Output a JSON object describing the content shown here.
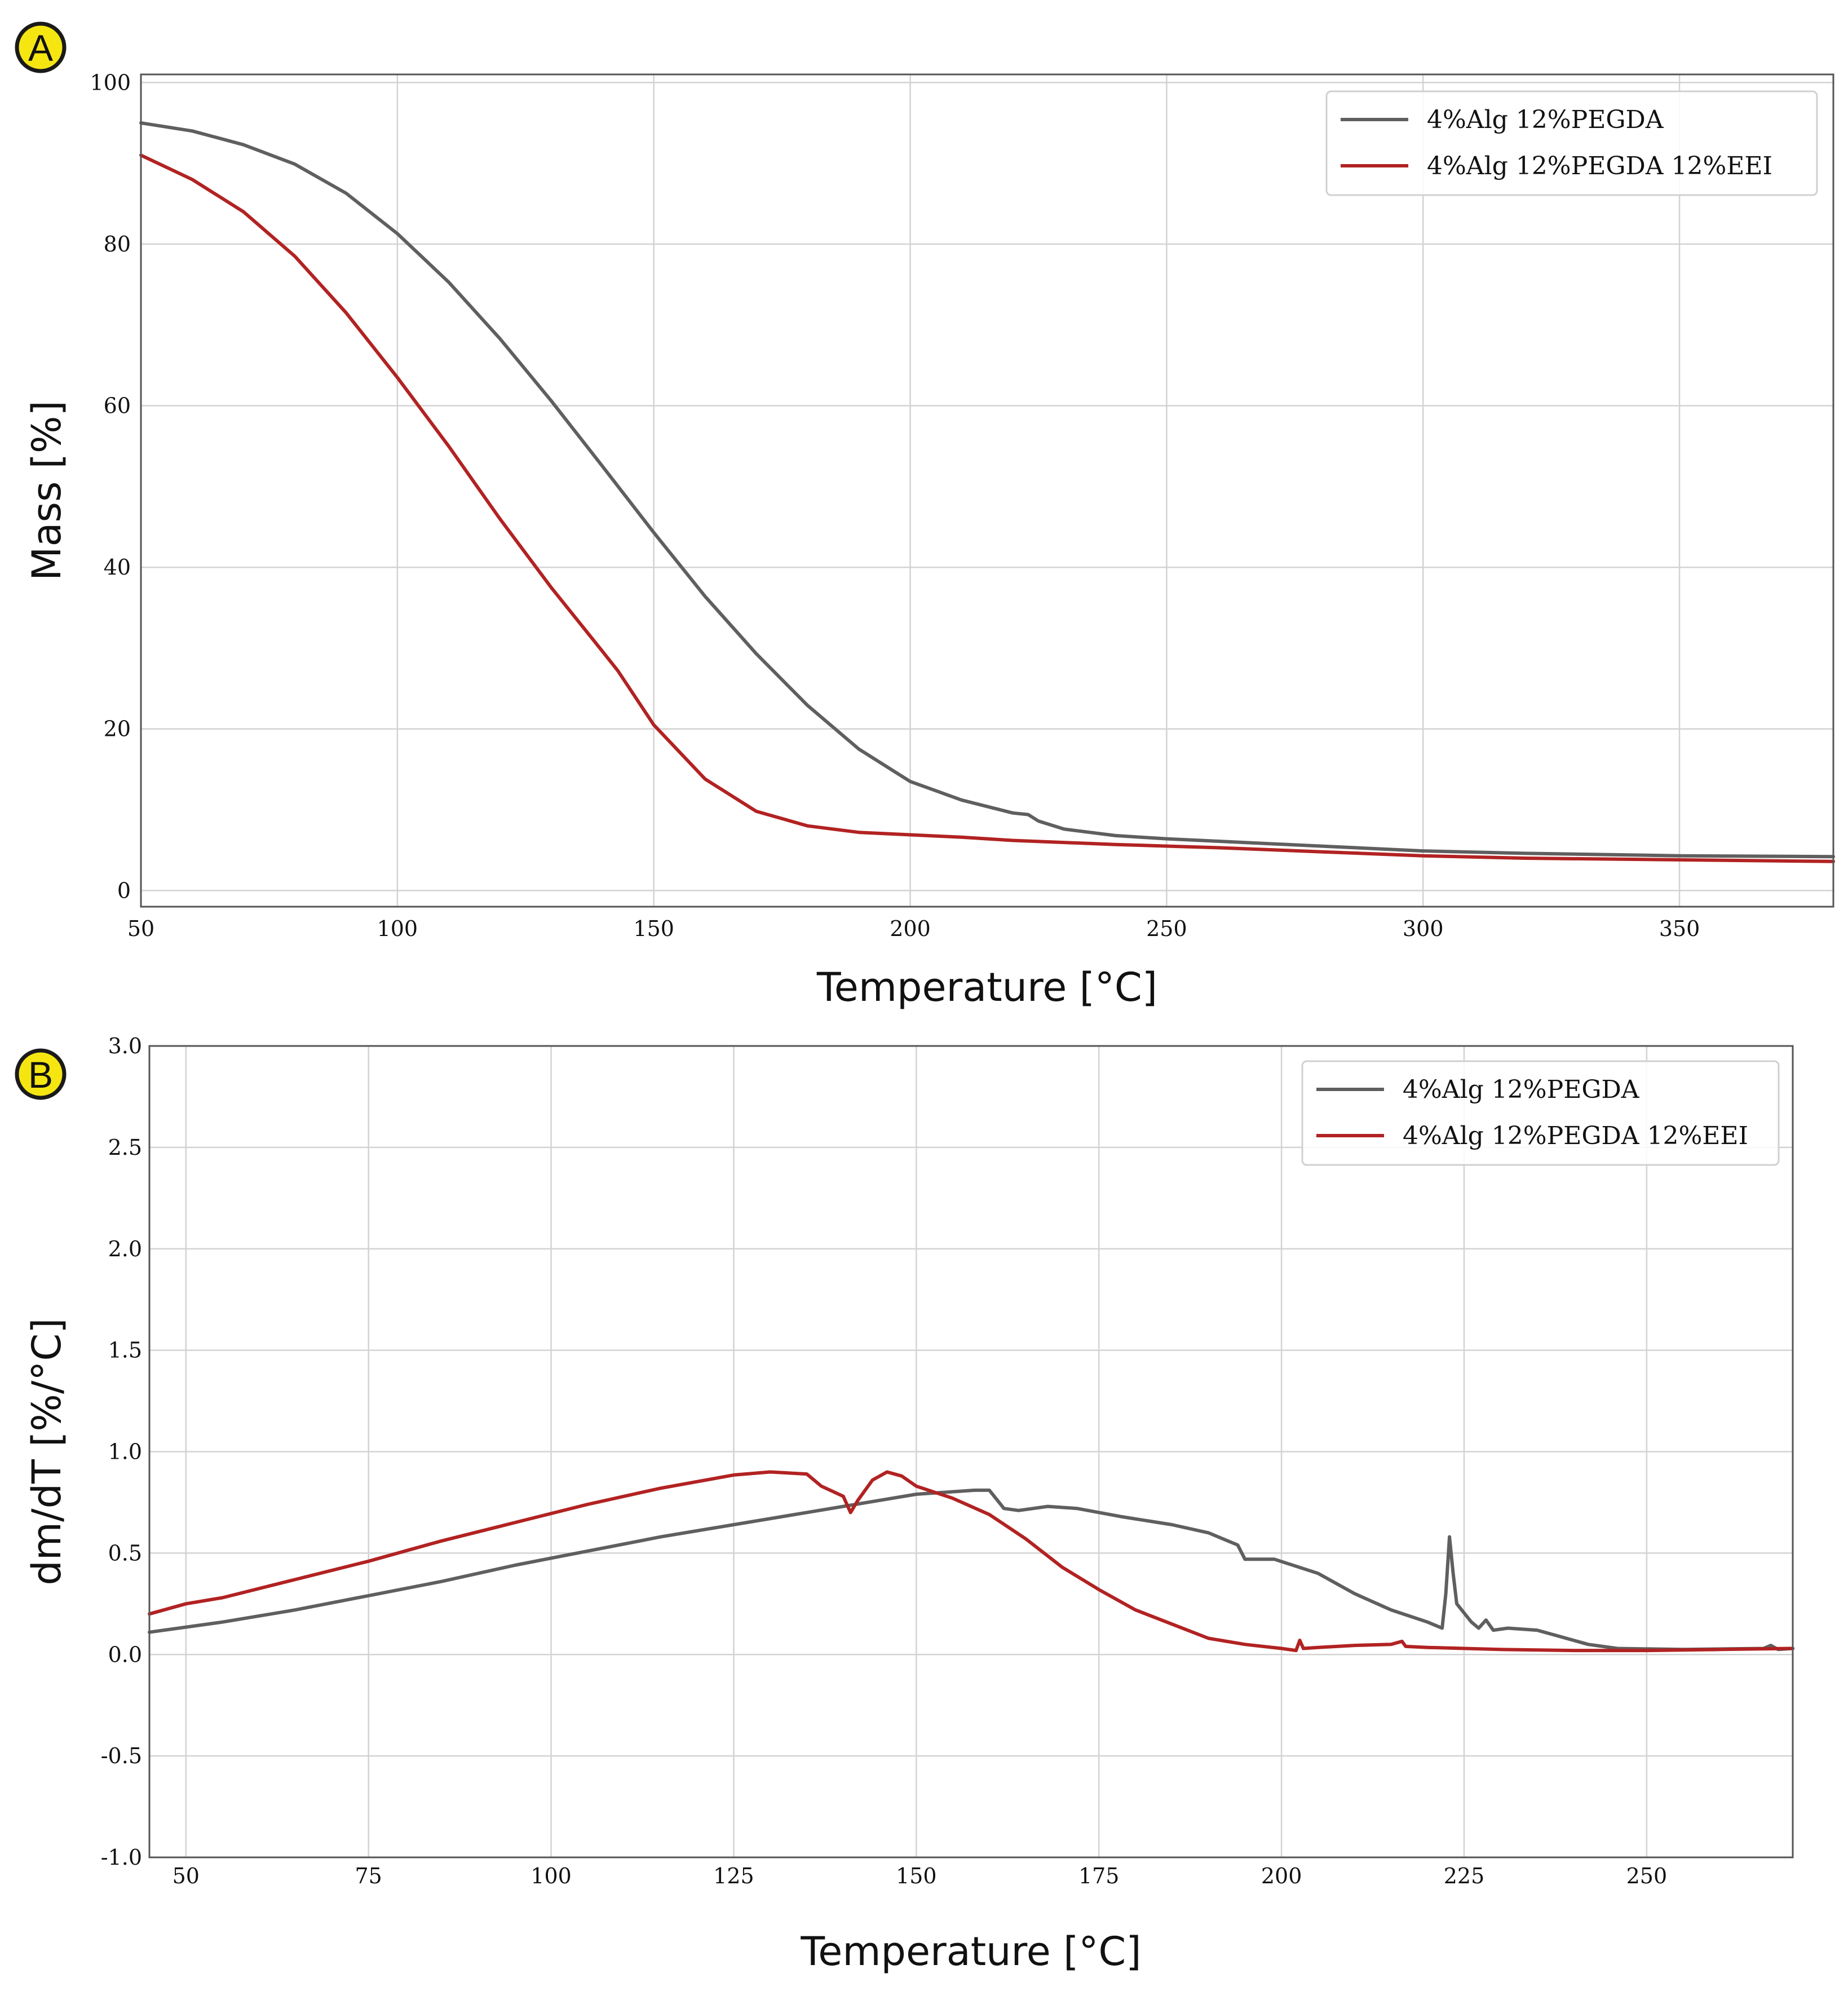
{
  "chart_data": [
    {
      "panel_label": "A",
      "type": "line",
      "xlabel": "Temperature [°C]",
      "ylabel": "Mass [%]",
      "xlim": [
        50,
        380
      ],
      "ylim": [
        -2,
        101
      ],
      "xticks": [
        50,
        100,
        150,
        200,
        250,
        300,
        350
      ],
      "yticks": [
        0,
        20,
        40,
        60,
        80,
        100
      ],
      "grid": true,
      "legend_position": "top-right",
      "series": [
        {
          "name": "4%Alg 12%PEGDA",
          "color": "#5f5f5f",
          "points": [
            [
              50,
              95
            ],
            [
              60,
              94
            ],
            [
              70,
              92.3
            ],
            [
              80,
              89.9
            ],
            [
              90,
              86.3
            ],
            [
              100,
              81.3
            ],
            [
              110,
              75.3
            ],
            [
              120,
              68.3
            ],
            [
              130,
              60.6
            ],
            [
              140,
              52.5
            ],
            [
              150,
              44.3
            ],
            [
              160,
              36.4
            ],
            [
              170,
              29.3
            ],
            [
              180,
              22.9
            ],
            [
              190,
              17.5
            ],
            [
              200,
              13.5
            ],
            [
              210,
              11.2
            ],
            [
              220,
              9.6
            ],
            [
              223,
              9.4
            ],
            [
              225,
              8.6
            ],
            [
              230,
              7.6
            ],
            [
              240,
              6.8
            ],
            [
              250,
              6.4
            ],
            [
              260,
              6.1
            ],
            [
              270,
              5.8
            ],
            [
              280,
              5.5
            ],
            [
              300,
              4.9
            ],
            [
              320,
              4.6
            ],
            [
              350,
              4.3
            ],
            [
              380,
              4.2
            ]
          ]
        },
        {
          "name": "4%Alg 12%PEGDA 12%EEI",
          "color": "#b22222",
          "points": [
            [
              50,
              91
            ],
            [
              60,
              88
            ],
            [
              70,
              84
            ],
            [
              80,
              78.5
            ],
            [
              90,
              71.5
            ],
            [
              100,
              63.5
            ],
            [
              110,
              55
            ],
            [
              120,
              46
            ],
            [
              130,
              37.5
            ],
            [
              140,
              29.6
            ],
            [
              143,
              27.2
            ],
            [
              150,
              20.5
            ],
            [
              160,
              13.8
            ],
            [
              170,
              9.8
            ],
            [
              180,
              8
            ],
            [
              190,
              7.2
            ],
            [
              200,
              6.9
            ],
            [
              210,
              6.6
            ],
            [
              220,
              6.2
            ],
            [
              240,
              5.7
            ],
            [
              260,
              5.3
            ],
            [
              280,
              4.8
            ],
            [
              300,
              4.3
            ],
            [
              320,
              4.0
            ],
            [
              350,
              3.8
            ],
            [
              380,
              3.6
            ]
          ]
        }
      ]
    },
    {
      "panel_label": "B",
      "type": "line",
      "xlabel": "Temperature [°C]",
      "ylabel": "dm/dT [%/°C]",
      "xlim": [
        45,
        270
      ],
      "ylim": [
        -1.0,
        3.0
      ],
      "xticks": [
        50,
        75,
        100,
        125,
        150,
        175,
        200,
        225,
        250
      ],
      "yticks": [
        -1.0,
        -0.5,
        0.0,
        0.5,
        1.0,
        1.5,
        2.0,
        2.5,
        3.0
      ],
      "grid": true,
      "legend_position": "top-right",
      "series": [
        {
          "name": "4%Alg 12%PEGDA",
          "color": "#5f5f5f",
          "points": [
            [
              45,
              0.11
            ],
            [
              55,
              0.16
            ],
            [
              65,
              0.22
            ],
            [
              75,
              0.29
            ],
            [
              85,
              0.36
            ],
            [
              95,
              0.44
            ],
            [
              105,
              0.51
            ],
            [
              115,
              0.58
            ],
            [
              125,
              0.64
            ],
            [
              135,
              0.7
            ],
            [
              145,
              0.76
            ],
            [
              150,
              0.79
            ],
            [
              158,
              0.81
            ],
            [
              160,
              0.81
            ],
            [
              162,
              0.72
            ],
            [
              164,
              0.71
            ],
            [
              168,
              0.73
            ],
            [
              172,
              0.72
            ],
            [
              178,
              0.68
            ],
            [
              185,
              0.64
            ],
            [
              190,
              0.6
            ],
            [
              194,
              0.54
            ],
            [
              195,
              0.47
            ],
            [
              199,
              0.47
            ],
            [
              205,
              0.4
            ],
            [
              210,
              0.3
            ],
            [
              215,
              0.22
            ],
            [
              220,
              0.16
            ],
            [
              222,
              0.13
            ],
            [
              222.5,
              0.3
            ],
            [
              223,
              0.58
            ],
            [
              223.5,
              0.4
            ],
            [
              224,
              0.25
            ],
            [
              226,
              0.16
            ],
            [
              227,
              0.13
            ],
            [
              228,
              0.17
            ],
            [
              229,
              0.12
            ],
            [
              231,
              0.13
            ],
            [
              235,
              0.12
            ],
            [
              238,
              0.09
            ],
            [
              242,
              0.05
            ],
            [
              246,
              0.03
            ],
            [
              255,
              0.025
            ],
            [
              266,
              0.03
            ],
            [
              267,
              0.045
            ],
            [
              268,
              0.025
            ],
            [
              270,
              0.03
            ]
          ]
        },
        {
          "name": "4%Alg 12%PEGDA 12%EEI",
          "color": "#b22222",
          "points": [
            [
              45,
              0.2
            ],
            [
              50,
              0.25
            ],
            [
              55,
              0.28
            ],
            [
              65,
              0.37
            ],
            [
              75,
              0.46
            ],
            [
              85,
              0.56
            ],
            [
              95,
              0.65
            ],
            [
              105,
              0.74
            ],
            [
              115,
              0.82
            ],
            [
              125,
              0.885
            ],
            [
              130,
              0.9
            ],
            [
              135,
              0.89
            ],
            [
              137,
              0.83
            ],
            [
              140,
              0.78
            ],
            [
              141,
              0.7
            ],
            [
              142,
              0.76
            ],
            [
              144,
              0.86
            ],
            [
              146,
              0.9
            ],
            [
              148,
              0.88
            ],
            [
              150,
              0.83
            ],
            [
              155,
              0.77
            ],
            [
              160,
              0.69
            ],
            [
              165,
              0.57
            ],
            [
              170,
              0.43
            ],
            [
              175,
              0.32
            ],
            [
              180,
              0.22
            ],
            [
              185,
              0.15
            ],
            [
              190,
              0.08
            ],
            [
              195,
              0.05
            ],
            [
              200,
              0.03
            ],
            [
              202,
              0.02
            ],
            [
              202.5,
              0.07
            ],
            [
              203,
              0.03
            ],
            [
              205,
              0.035
            ],
            [
              210,
              0.045
            ],
            [
              215,
              0.05
            ],
            [
              216.5,
              0.065
            ],
            [
              217,
              0.04
            ],
            [
              220,
              0.035
            ],
            [
              230,
              0.025
            ],
            [
              240,
              0.02
            ],
            [
              250,
              0.02
            ],
            [
              260,
              0.025
            ],
            [
              270,
              0.03
            ]
          ]
        }
      ]
    }
  ]
}
